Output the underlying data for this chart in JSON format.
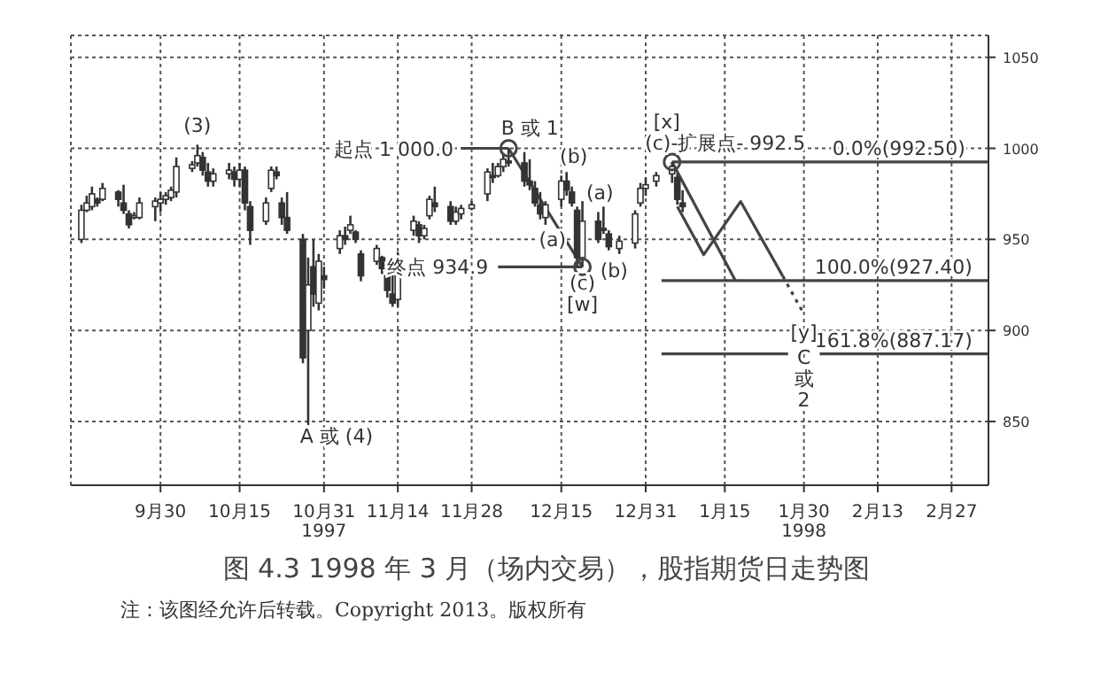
{
  "chart_data": {
    "type": "candlestick",
    "title": "图 4.3   1998 年 3 月（场内交易），股指期货日走势图",
    "xlim": [
      "1997-09-13",
      "1998-03-06"
    ],
    "xticks": [
      {
        "value": "1997-09-30",
        "label": "9月30"
      },
      {
        "value": "1997-10-15",
        "label": "10月15"
      },
      {
        "value": "1997-10-31",
        "label": "10月31\n1997"
      },
      {
        "value": "1997-11-14",
        "label": "11月14"
      },
      {
        "value": "1997-11-28",
        "label": "11月28"
      },
      {
        "value": "1997-12-15",
        "label": "12月15"
      },
      {
        "value": "1997-12-31",
        "label": "12月31"
      },
      {
        "value": "1998-01-15",
        "label": "1月15"
      },
      {
        "value": "1998-01-30",
        "label": "1月30\n1998"
      },
      {
        "value": "1998-02-13",
        "label": "2月13"
      },
      {
        "value": "1998-02-27",
        "label": "2月27"
      }
    ],
    "ylim": [
      815,
      1062
    ],
    "yticks": [
      850,
      900,
      950,
      1000,
      1050
    ],
    "grid": true,
    "series": [
      {
        "color": "#333333",
        "x": [
          "1997-09-15",
          "1997-09-16",
          "1997-09-17",
          "1997-09-18",
          "1997-09-19",
          "1997-09-22",
          "1997-09-23",
          "1997-09-24",
          "1997-09-25",
          "1997-09-26",
          "1997-09-29",
          "1997-09-30",
          "1997-10-01",
          "1997-10-02",
          "1997-10-03",
          "1997-10-06",
          "1997-10-07",
          "1997-10-08",
          "1997-10-09",
          "1997-10-10",
          "1997-10-13",
          "1997-10-14",
          "1997-10-15",
          "1997-10-16",
          "1997-10-17",
          "1997-10-20",
          "1997-10-21",
          "1997-10-22",
          "1997-10-23",
          "1997-10-24",
          "1997-10-27",
          "1997-10-28",
          "1997-10-29",
          "1997-10-30",
          "1997-10-31",
          "1997-11-03",
          "1997-11-04",
          "1997-11-05",
          "1997-11-06",
          "1997-11-07",
          "1997-11-10",
          "1997-11-11",
          "1997-11-12",
          "1997-11-13",
          "1997-11-14",
          "1997-11-17",
          "1997-11-18",
          "1997-11-19",
          "1997-11-20",
          "1997-11-21",
          "1997-11-24",
          "1997-11-25",
          "1997-11-26",
          "1997-11-28",
          "1997-12-01",
          "1997-12-02",
          "1997-12-03",
          "1997-12-04",
          "1997-12-05",
          "1997-12-08",
          "1997-12-09",
          "1997-12-10",
          "1997-12-11",
          "1997-12-12",
          "1997-12-15",
          "1997-12-16",
          "1997-12-17",
          "1997-12-18",
          "1997-12-19",
          "1997-12-22",
          "1997-12-23",
          "1997-12-24",
          "1997-12-26",
          "1997-12-29",
          "1997-12-30",
          "1997-12-31",
          "1998-01-02",
          "1998-01-05",
          "1998-01-06",
          "1998-01-07"
        ],
        "ohlc": [
          [
            950,
            969,
            948,
            966
          ],
          [
            966,
            974,
            965,
            970
          ],
          [
            968,
            979,
            966,
            975
          ],
          [
            972,
            973,
            968,
            970
          ],
          [
            972,
            981,
            971,
            978
          ],
          [
            976,
            977,
            968,
            972
          ],
          [
            970,
            980,
            964,
            966
          ],
          [
            964,
            966,
            956,
            958
          ],
          [
            962,
            965,
            961,
            963
          ],
          [
            962,
            973,
            961,
            970
          ],
          [
            968,
            973,
            960,
            971
          ],
          [
            970,
            976,
            965,
            972
          ],
          [
            972,
            976,
            969,
            974
          ],
          [
            973,
            979,
            971,
            977
          ],
          [
            976,
            995,
            973,
            990
          ],
          [
            989,
            993,
            987,
            991
          ],
          [
            992,
            1002,
            990,
            996
          ],
          [
            995,
            998,
            985,
            988
          ],
          [
            987,
            992,
            979,
            982
          ],
          [
            982,
            989,
            979,
            986
          ],
          [
            986,
            992,
            983,
            988
          ],
          [
            987,
            990,
            979,
            983
          ],
          [
            983,
            992,
            979,
            988
          ],
          [
            988,
            990,
            966,
            970
          ],
          [
            968,
            971,
            947,
            955
          ],
          [
            960,
            973,
            958,
            970
          ],
          [
            978,
            990,
            976,
            988
          ],
          [
            987,
            990,
            983,
            985
          ],
          [
            970,
            973,
            958,
            962
          ],
          [
            962,
            976,
            953,
            955
          ],
          [
            950,
            953,
            882,
            885
          ],
          [
            900,
            940,
            848,
            925
          ],
          [
            935,
            950,
            913,
            920
          ],
          [
            915,
            942,
            911,
            938
          ],
          [
            930,
            935,
            923,
            928
          ],
          [
            945,
            955,
            942,
            952
          ],
          [
            952,
            957,
            947,
            950
          ],
          [
            955,
            963,
            953,
            958
          ],
          [
            954,
            955,
            948,
            950
          ],
          [
            942,
            944,
            927,
            930
          ],
          [
            938,
            947,
            936,
            945
          ],
          [
            940,
            941,
            931,
            934
          ],
          [
            930,
            935,
            918,
            922
          ],
          [
            920,
            931,
            913,
            915
          ],
          [
            917,
            943,
            913,
            940
          ],
          [
            955,
            963,
            952,
            960
          ],
          [
            958,
            960,
            948,
            952
          ],
          [
            952,
            958,
            950,
            956
          ],
          [
            963,
            974,
            961,
            972
          ],
          [
            970,
            979,
            965,
            968
          ],
          [
            968,
            971,
            958,
            960
          ],
          [
            960,
            968,
            958,
            965
          ],
          [
            964,
            969,
            961,
            967
          ],
          [
            967,
            971,
            966,
            969
          ],
          [
            975,
            989,
            971,
            987
          ],
          [
            985,
            992,
            981,
            984
          ],
          [
            985,
            992,
            984,
            990
          ],
          [
            990,
            997,
            987,
            994
          ],
          [
            993,
            1000,
            990,
            992
          ],
          [
            992,
            998,
            979,
            982
          ],
          [
            982,
            994,
            977,
            980
          ],
          [
            978,
            982,
            968,
            970
          ],
          [
            969,
            976,
            961,
            964
          ],
          [
            962,
            971,
            958,
            969
          ],
          [
            972,
            985,
            968,
            982
          ],
          [
            982,
            987,
            974,
            977
          ],
          [
            976,
            979,
            968,
            970
          ],
          [
            966,
            968,
            935,
            940
          ],
          [
            940,
            971,
            934.9,
            960
          ],
          [
            960,
            965,
            948,
            950
          ],
          [
            956,
            968,
            953,
            955
          ],
          [
            953,
            955,
            944,
            946
          ],
          [
            945,
            952,
            942,
            949
          ],
          [
            948,
            966,
            945,
            964
          ],
          [
            970,
            981,
            968,
            978
          ],
          [
            978,
            984,
            974,
            980
          ],
          [
            982,
            987,
            979,
            985
          ],
          [
            986,
            992.5,
            981,
            990
          ],
          [
            984,
            986,
            969,
            972
          ],
          [
            970,
            977,
            965,
            968
          ]
        ]
      },
      {
        "type": "line",
        "color": "#444444",
        "x": [
          "1997-11-26",
          "1997-12-05"
        ],
        "values": [
          1000,
          1000
        ]
      },
      {
        "type": "line",
        "color": "#444444",
        "x": [
          "1997-12-05",
          "1997-12-19"
        ],
        "values": [
          1000,
          934.9
        ]
      },
      {
        "type": "line",
        "color": "#444444",
        "x": [
          "1997-12-03",
          "1997-12-19"
        ],
        "values": [
          934.9,
          934.9
        ]
      },
      {
        "type": "line",
        "color": "#444444",
        "x": [
          "1998-01-05",
          "1998-03-06"
        ],
        "values": [
          992.5,
          992.5
        ]
      },
      {
        "type": "line",
        "color": "#444444",
        "x": [
          "1998-01-03",
          "1998-03-06"
        ],
        "values": [
          927.4,
          927.4
        ]
      },
      {
        "type": "line",
        "color": "#444444",
        "x": [
          "1998-01-03",
          "1998-01-27"
        ],
        "values": [
          887.17,
          887.17
        ]
      },
      {
        "type": "line",
        "color": "#444444",
        "x": [
          "1998-02-02",
          "1998-03-06"
        ],
        "values": [
          887.17,
          887.17
        ]
      },
      {
        "type": "line",
        "color": "#444444",
        "x": [
          "1998-01-05",
          "1998-01-17"
        ],
        "values": [
          992.5,
          927.4
        ]
      },
      {
        "type": "line",
        "color": "#444444",
        "x": [
          "1998-01-06",
          "1998-01-11",
          "1998-01-18",
          "1998-01-26"
        ],
        "values": [
          968,
          941.6,
          970.8,
          929.8
        ]
      },
      {
        "type": "line",
        "color": "#444444",
        "line_style": "dotted",
        "x": [
          "1998-01-26",
          "1998-01-30"
        ],
        "values": [
          929.8,
          909
        ]
      },
      {
        "type": "scatter",
        "color": "#444444",
        "marker": "circle",
        "x": [
          "1997-12-05",
          "1997-12-19",
          "1998-01-05"
        ],
        "values": [
          1000,
          934.9,
          992.5
        ]
      }
    ],
    "annotations": [
      {
        "text": "(3)",
        "x": "1997-10-07",
        "y": 1002
      },
      {
        "text": "A 或 (4)",
        "x": "1997-10-28",
        "y": 848
      },
      {
        "text": "起点 1 000.0",
        "x": "1997-11-26",
        "y": 1000
      },
      {
        "text": "B 或 1",
        "x": "1997-12-05",
        "y": 1000
      },
      {
        "text": "(b)",
        "x": "1997-12-16",
        "y": 987
      },
      {
        "text": "(a)",
        "x": "1997-12-23",
        "y": 968
      },
      {
        "text": "(a)",
        "x": "1997-12-12",
        "y": 958
      },
      {
        "text": "终点 934.9",
        "x": "1997-12-03",
        "y": 934.9
      },
      {
        "text": "(c)",
        "x": "1997-12-19",
        "y": 934.9
      },
      {
        "text": "(b)",
        "x": "1997-12-26",
        "y": 942
      },
      {
        "text": "[w]",
        "x": "1997-12-19",
        "y": 934.9
      },
      {
        "text": "[x]",
        "x": "1998-01-05",
        "y": 992.5
      },
      {
        "text": "(c)-扩展点- 992.5",
        "x": "1998-01-05",
        "y": 992.5
      },
      {
        "text": "0.0%(992.50)",
        "x": "1998-02-17",
        "y": 992.5
      },
      {
        "text": "100.0%(927.40)",
        "x": "1998-02-16",
        "y": 927.4
      },
      {
        "text": "161.8%(887.17)",
        "x": "1998-02-16",
        "y": 887.17
      },
      {
        "text": "[y]",
        "x": "1998-01-30",
        "y": 909
      },
      {
        "text": "C\n或\n2",
        "x": "1998-01-30",
        "y": 909
      },
      "注：该图经允许后转载。Copyright 2013。版权所有"
    ]
  }
}
